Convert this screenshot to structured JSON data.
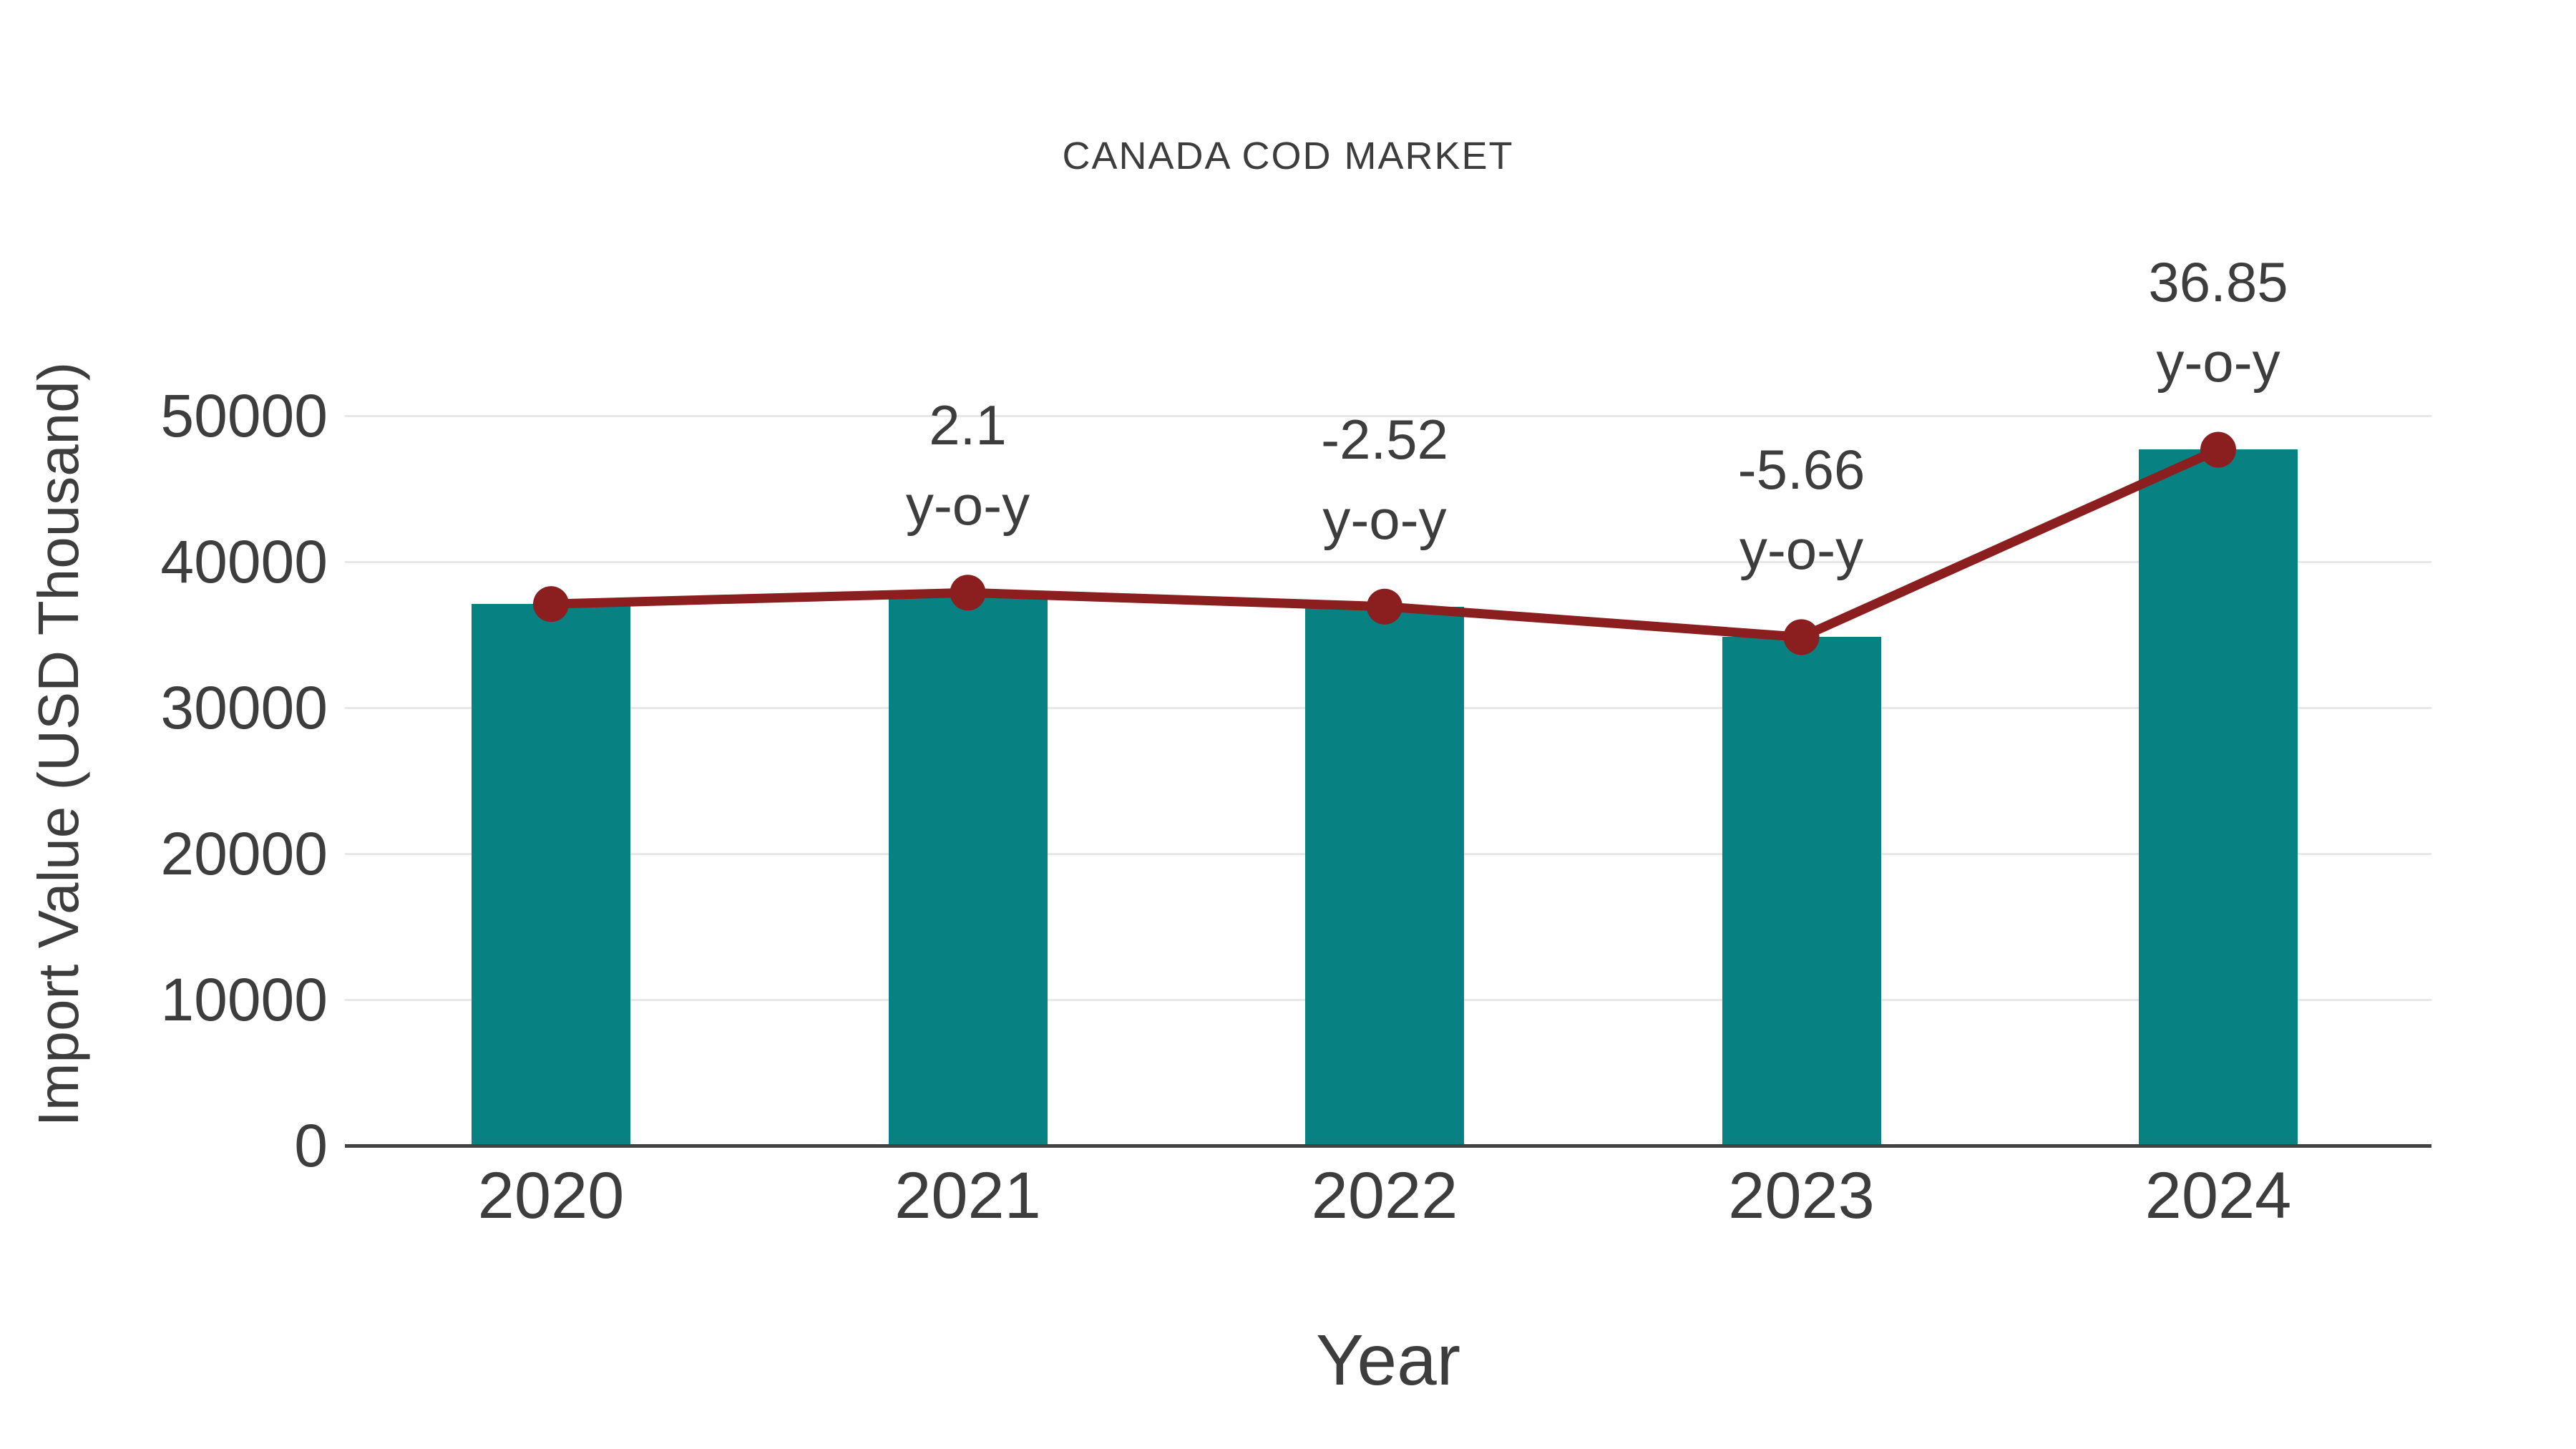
{
  "chart_data": {
    "type": "bar",
    "title": "CANADA COD MARKET",
    "xlabel": "Year",
    "ylabel": "Import Value (USD Thousand)",
    "categories": [
      "2020",
      "2021",
      "2022",
      "2023",
      "2024"
    ],
    "series": [
      {
        "name": "Import Value bars",
        "type": "bar",
        "values": [
          37100,
          37879,
          36925,
          34835,
          47672
        ]
      },
      {
        "name": "Import Value trend line",
        "type": "line",
        "values": [
          37100,
          37879,
          36925,
          34835,
          47672
        ]
      }
    ],
    "annotations": [
      {
        "category": "2021",
        "line1": "2.1",
        "line2": "y-o-y"
      },
      {
        "category": "2022",
        "line1": "-2.52",
        "line2": "y-o-y"
      },
      {
        "category": "2023",
        "line1": "-5.66",
        "line2": "y-o-y"
      },
      {
        "category": "2024",
        "line1": "36.85",
        "line2": "y-o-y"
      }
    ],
    "ylim": [
      0,
      50000
    ],
    "yticks": [
      0,
      10000,
      20000,
      30000,
      40000,
      50000
    ],
    "grid": true,
    "legend_position": "none"
  },
  "colors": {
    "bar": "#078181",
    "line": "#8B1E1E",
    "grid": "#e8e8e8",
    "axis": "#424242",
    "text": "#3d3d3d",
    "background": "#ffffff"
  }
}
